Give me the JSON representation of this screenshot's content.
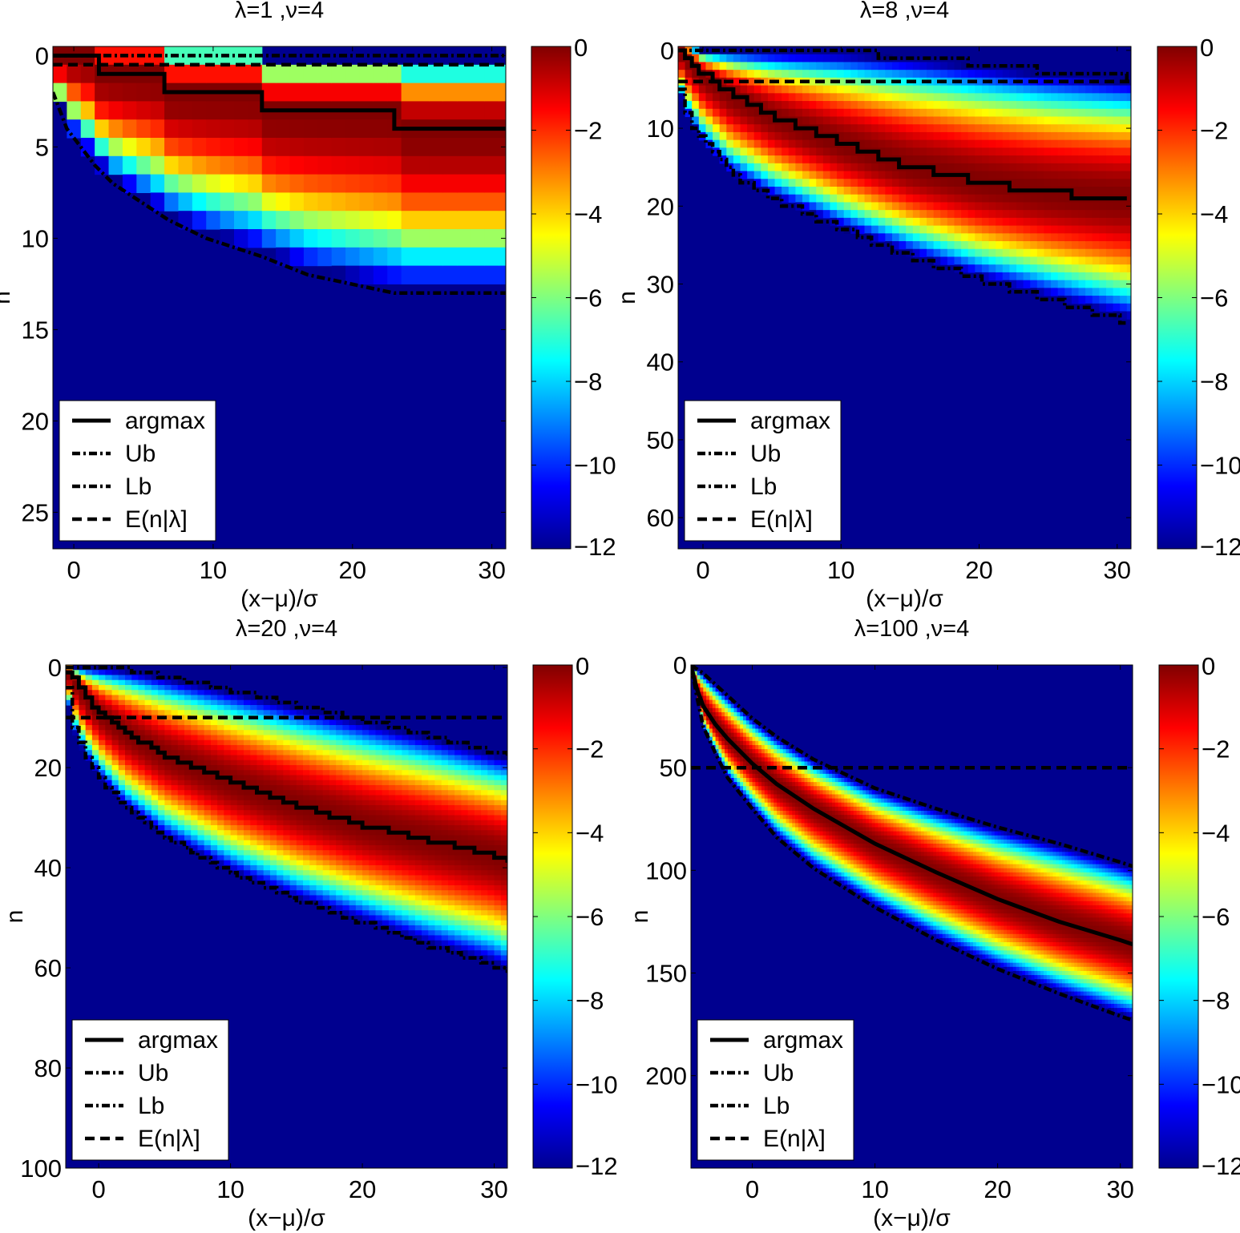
{
  "figure": {
    "colorbar": {
      "ticks": [
        "0",
        "−2",
        "−4",
        "−6",
        "−8",
        "−10",
        "−12"
      ],
      "range": [
        -12,
        0
      ]
    },
    "legend": {
      "argmax": "argmax",
      "ub": "Ub",
      "lb": "Lb",
      "mean": "E(n|λ]"
    }
  },
  "chart_data": [
    {
      "type": "heatmap",
      "title": "λ=1 ,ν=4",
      "xlabel": "(x−μ)/σ",
      "ylabel": "n",
      "lambda": 1,
      "nu": 4,
      "xlim": [
        -1.5,
        31
      ],
      "ylim": [
        27,
        -0.5
      ],
      "y_reversed": true,
      "xticks": [
        0,
        10,
        20,
        30
      ],
      "yticks": [
        0,
        5,
        10,
        15,
        20,
        25
      ],
      "discrete": true,
      "x_step": 1,
      "color_scale": {
        "min": -12,
        "max": 0,
        "colormap": "jet"
      },
      "series": [
        {
          "name": "argmax",
          "style": "solid",
          "x": [
            -1.5,
            1.8,
            1.8,
            6.5,
            6.5,
            13.5,
            13.5,
            23,
            23,
            31
          ],
          "y": [
            0,
            0,
            1,
            1,
            2,
            2,
            3,
            3,
            4,
            4
          ]
        },
        {
          "name": "Ub",
          "style": "dashdot",
          "x": [
            -1.5,
            31
          ],
          "y": [
            0,
            0
          ]
        },
        {
          "name": "Lb",
          "style": "dashdot",
          "x": [
            -1.5,
            -0.5,
            0.5,
            1.5,
            2.8,
            4.8,
            6.8,
            9.5,
            13.5,
            16.8,
            23,
            31
          ],
          "y": [
            2,
            4,
            5,
            6,
            7,
            8,
            9,
            10,
            11,
            12,
            13,
            13
          ]
        },
        {
          "name": "E(n|λ]",
          "style": "dashed",
          "x": [
            -1.5,
            31
          ],
          "y": [
            0.5,
            0.5
          ]
        }
      ],
      "legend_entries": [
        "argmax",
        "Ub",
        "Lb",
        "E(n|λ]"
      ]
    },
    {
      "type": "heatmap",
      "title": "λ=8 ,ν=4",
      "xlabel": "(x−μ)/σ",
      "ylabel": "n",
      "lambda": 8,
      "nu": 4,
      "xlim": [
        -1.8,
        31
      ],
      "ylim": [
        64,
        -0.5
      ],
      "y_reversed": true,
      "xticks": [
        0,
        10,
        20,
        30
      ],
      "yticks": [
        0,
        10,
        20,
        30,
        40,
        50,
        60
      ],
      "discrete": true,
      "x_step": 0.5,
      "color_scale": {
        "min": -12,
        "max": 0,
        "colormap": "jet"
      },
      "series": [
        {
          "name": "argmax",
          "style": "steps",
          "x": [
            -1.8,
            0,
            2,
            5,
            10,
            15,
            20,
            25,
            30,
            31
          ],
          "y": [
            0,
            3.2,
            5.6,
            8.5,
            12,
            15,
            17,
            18.3,
            19,
            19
          ]
        },
        {
          "name": "Ub",
          "style": "steps",
          "x": [
            -1.8,
            10,
            15,
            20,
            25,
            31
          ],
          "y": [
            0,
            0.2,
            0.8,
            1.7,
            2.7,
            3.6
          ]
        },
        {
          "name": "Lb",
          "style": "steps",
          "x": [
            -1.8,
            -1,
            0,
            2,
            5,
            10,
            15,
            20,
            25,
            30,
            31
          ],
          "y": [
            5,
            9,
            12,
            16,
            19,
            23,
            26.5,
            29.5,
            32,
            34.5,
            35
          ]
        },
        {
          "name": "E(n|λ]",
          "style": "dashed",
          "x": [
            -1.8,
            31
          ],
          "y": [
            4,
            4
          ]
        }
      ],
      "legend_entries": [
        "argmax",
        "Ub",
        "Lb",
        "E(n|λ]"
      ]
    },
    {
      "type": "heatmap",
      "title": "λ=20 ,ν=4",
      "xlabel": "(x−μ)/σ",
      "ylabel": "n",
      "lambda": 20,
      "nu": 4,
      "xlim": [
        -2.5,
        31
      ],
      "ylim": [
        100,
        -0.5
      ],
      "y_reversed": true,
      "xticks": [
        0,
        10,
        20,
        30
      ],
      "yticks": [
        0,
        20,
        40,
        60,
        80,
        100
      ],
      "discrete": true,
      "x_step": 0.5,
      "color_scale": {
        "min": -12,
        "max": 0,
        "colormap": "jet"
      },
      "series": [
        {
          "name": "argmax",
          "style": "steps",
          "x": [
            -2.5,
            -1,
            0,
            2,
            5,
            10,
            15,
            20,
            25,
            30,
            31
          ],
          "y": [
            0.5,
            6,
            9,
            13,
            17.5,
            23,
            27.5,
            31.5,
            34.5,
            37.5,
            38.5
          ]
        },
        {
          "name": "Ub",
          "style": "steps",
          "x": [
            -2.5,
            0,
            2,
            5,
            10,
            15,
            20,
            25,
            30,
            31
          ],
          "y": [
            0,
            0,
            0.4,
            1.8,
            4.5,
            7.5,
            10.5,
            13.5,
            17,
            17.5
          ]
        },
        {
          "name": "Lb",
          "style": "steps",
          "x": [
            -2.5,
            -2,
            -1,
            0,
            2,
            5,
            10,
            15,
            20,
            25,
            30,
            31
          ],
          "y": [
            4,
            12,
            18,
            22,
            28,
            34,
            41,
            46.5,
            51,
            55.5,
            59.5,
            61
          ]
        },
        {
          "name": "E(n|λ]",
          "style": "dashed",
          "x": [
            -2.5,
            31
          ],
          "y": [
            10,
            10
          ]
        }
      ],
      "legend_entries": [
        "argmax",
        "Ub",
        "Lb",
        "E(n|λ]"
      ]
    },
    {
      "type": "heatmap",
      "title": "λ=100 ,ν=4",
      "xlabel": "(x−μ)/σ",
      "ylabel": "n",
      "lambda": 100,
      "nu": 4,
      "xlim": [
        -5,
        31
      ],
      "ylim": [
        245,
        0
      ],
      "y_reversed": true,
      "xticks": [
        0,
        10,
        20,
        30
      ],
      "yticks": [
        0,
        50,
        100,
        150,
        200
      ],
      "discrete": false,
      "x_step": 0.25,
      "color_scale": {
        "min": -12,
        "max": 0,
        "colormap": "jet"
      },
      "series": [
        {
          "name": "argmax",
          "style": "solid",
          "x": [
            -5,
            -4.5,
            -4,
            -3,
            -2,
            0,
            2,
            5,
            10,
            15,
            20,
            25,
            30,
            31
          ],
          "y": [
            0,
            12,
            20,
            29,
            36,
            48,
            58,
            70,
            87,
            101,
            114,
            125,
            134,
            136
          ]
        },
        {
          "name": "Ub",
          "style": "dashdot",
          "x": [
            -5,
            -4,
            -2,
            0,
            2,
            5,
            10,
            15,
            20,
            25,
            30,
            31
          ],
          "y": [
            0,
            4,
            15,
            26,
            35,
            46,
            60,
            70,
            79,
            87,
            96,
            98
          ]
        },
        {
          "name": "Lb",
          "style": "dashdot",
          "x": [
            -5,
            -4.5,
            -4,
            -3,
            -2,
            0,
            2,
            5,
            10,
            15,
            20,
            25,
            30,
            31
          ],
          "y": [
            0,
            16,
            30,
            43,
            55,
            70,
            84,
            99,
            118,
            134,
            148,
            160,
            171,
            173
          ]
        },
        {
          "name": "E(n|λ]",
          "style": "dashed",
          "x": [
            -5,
            31
          ],
          "y": [
            50,
            50
          ]
        }
      ],
      "legend_entries": [
        "argmax",
        "Ub",
        "Lb",
        "E(n|λ]"
      ]
    }
  ]
}
